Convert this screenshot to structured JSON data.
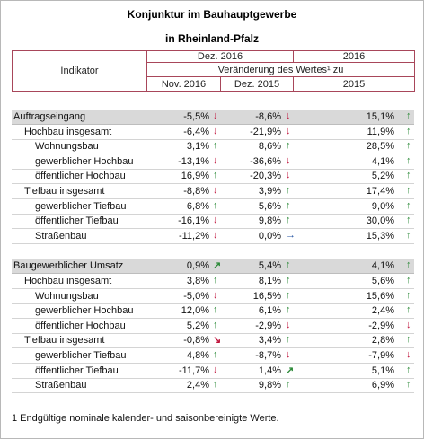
{
  "header": {
    "title": "Konjunktur im Bauhauptgewerbe",
    "subtitle": "in Rheinland-Pfalz"
  },
  "table": {
    "indicator_header": "Indikator",
    "period_header": "Dez. 2016",
    "year_header": "2016",
    "change_header": "Veränderung des Wertes¹ zu",
    "columns": [
      "Nov. 2016",
      "Dez. 2015",
      "2015"
    ],
    "sections": [
      {
        "head": {
          "label": "Auftragseingang",
          "cells": [
            {
              "value": "-5,5%",
              "trend": "↓"
            },
            {
              "value": "-8,6%",
              "trend": "↓"
            },
            {
              "value": "15,1%",
              "trend": "↑"
            }
          ]
        },
        "groups": [
          {
            "head": {
              "label": "Hochbau insgesamt",
              "cells": [
                {
                  "value": "-6,4%",
                  "trend": "↓"
                },
                {
                  "value": "-21,9%",
                  "trend": "↓"
                },
                {
                  "value": "11,9%",
                  "trend": "↑"
                }
              ]
            },
            "items": [
              {
                "label": "Wohnungsbau",
                "cells": [
                  {
                    "value": "3,1%",
                    "trend": "↑"
                  },
                  {
                    "value": "8,6%",
                    "trend": "↑"
                  },
                  {
                    "value": "28,5%",
                    "trend": "↑"
                  }
                ]
              },
              {
                "label": "gewerblicher Hochbau",
                "cells": [
                  {
                    "value": "-13,1%",
                    "trend": "↓"
                  },
                  {
                    "value": "-36,6%",
                    "trend": "↓"
                  },
                  {
                    "value": "4,1%",
                    "trend": "↑"
                  }
                ]
              },
              {
                "label": "öffentlicher Hochbau",
                "cells": [
                  {
                    "value": "16,9%",
                    "trend": "↑"
                  },
                  {
                    "value": "-20,3%",
                    "trend": "↓"
                  },
                  {
                    "value": "5,2%",
                    "trend": "↑"
                  }
                ]
              }
            ]
          },
          {
            "head": {
              "label": "Tiefbau insgesamt",
              "cells": [
                {
                  "value": "-8,8%",
                  "trend": "↓"
                },
                {
                  "value": "3,9%",
                  "trend": "↑"
                },
                {
                  "value": "17,4%",
                  "trend": "↑"
                }
              ]
            },
            "items": [
              {
                "label": "gewerblicher Tiefbau",
                "cells": [
                  {
                    "value": "6,8%",
                    "trend": "↑"
                  },
                  {
                    "value": "5,6%",
                    "trend": "↑"
                  },
                  {
                    "value": "9,0%",
                    "trend": "↑"
                  }
                ]
              },
              {
                "label": "öffentlicher Tiefbau",
                "cells": [
                  {
                    "value": "-16,1%",
                    "trend": "↓"
                  },
                  {
                    "value": "9,8%",
                    "trend": "↑"
                  },
                  {
                    "value": "30,0%",
                    "trend": "↑"
                  }
                ]
              },
              {
                "label": "Straßenbau",
                "cells": [
                  {
                    "value": "-11,2%",
                    "trend": "↓"
                  },
                  {
                    "value": "0,0%",
                    "trend": "→"
                  },
                  {
                    "value": "15,3%",
                    "trend": "↑"
                  }
                ]
              }
            ]
          }
        ]
      },
      {
        "head": {
          "label": "Baugewerblicher Umsatz",
          "cells": [
            {
              "value": "0,9%",
              "trend": "↗"
            },
            {
              "value": "5,4%",
              "trend": "↑"
            },
            {
              "value": "4,1%",
              "trend": "↑"
            }
          ]
        },
        "groups": [
          {
            "head": {
              "label": "Hochbau insgesamt",
              "cells": [
                {
                  "value": "3,8%",
                  "trend": "↑"
                },
                {
                  "value": "8,1%",
                  "trend": "↑"
                },
                {
                  "value": "5,6%",
                  "trend": "↑"
                }
              ]
            },
            "items": [
              {
                "label": "Wohnungsbau",
                "cells": [
                  {
                    "value": "-5,0%",
                    "trend": "↓"
                  },
                  {
                    "value": "16,5%",
                    "trend": "↑"
                  },
                  {
                    "value": "15,6%",
                    "trend": "↑"
                  }
                ]
              },
              {
                "label": "gewerblicher Hochbau",
                "cells": [
                  {
                    "value": "12,0%",
                    "trend": "↑"
                  },
                  {
                    "value": "6,1%",
                    "trend": "↑"
                  },
                  {
                    "value": "2,4%",
                    "trend": "↑"
                  }
                ]
              },
              {
                "label": "öffentlicher Hochbau",
                "cells": [
                  {
                    "value": "5,2%",
                    "trend": "↑"
                  },
                  {
                    "value": "-2,9%",
                    "trend": "↓"
                  },
                  {
                    "value": "-2,9%",
                    "trend": "↓"
                  }
                ]
              }
            ]
          },
          {
            "head": {
              "label": "Tiefbau insgesamt",
              "cells": [
                {
                  "value": "-0,8%",
                  "trend": "↘"
                },
                {
                  "value": "3,4%",
                  "trend": "↑"
                },
                {
                  "value": "2,8%",
                  "trend": "↑"
                }
              ]
            },
            "items": [
              {
                "label": "gewerblicher Tiefbau",
                "cells": [
                  {
                    "value": "4,8%",
                    "trend": "↑"
                  },
                  {
                    "value": "-8,7%",
                    "trend": "↓"
                  },
                  {
                    "value": "-7,9%",
                    "trend": "↓"
                  }
                ]
              },
              {
                "label": "öffentlicher Tiefbau",
                "cells": [
                  {
                    "value": "-11,7%",
                    "trend": "↓"
                  },
                  {
                    "value": "1,4%",
                    "trend": "↗"
                  },
                  {
                    "value": "5,1%",
                    "trend": "↑"
                  }
                ]
              },
              {
                "label": "Straßenbau",
                "cells": [
                  {
                    "value": "2,4%",
                    "trend": "↑"
                  },
                  {
                    "value": "9,8%",
                    "trend": "↑"
                  },
                  {
                    "value": "6,9%",
                    "trend": "↑"
                  }
                ]
              }
            ]
          }
        ]
      }
    ]
  },
  "footnote": "1 Endgültige nominale kalender- und saisonbereinigte Werte."
}
